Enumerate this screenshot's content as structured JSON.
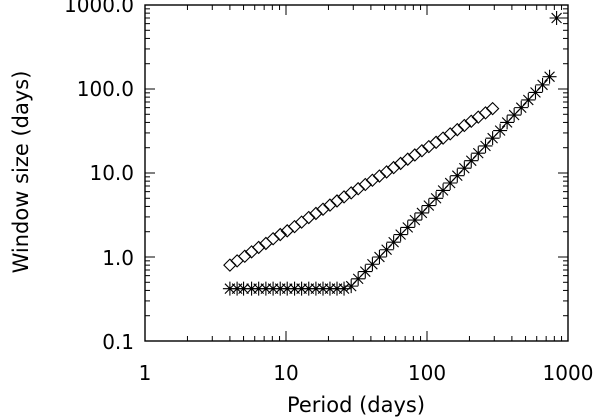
{
  "chart_data": {
    "type": "scatter",
    "title": "",
    "xlabel": "Period (days)",
    "ylabel": "Window size (days)",
    "xscale": "log",
    "yscale": "log",
    "xlim": [
      1,
      1000
    ],
    "ylim": [
      0.1,
      1000
    ],
    "grid": false,
    "x_tick_labels": [
      "1",
      "10",
      "100",
      "1000"
    ],
    "y_tick_labels": [
      "0.1",
      "1.0",
      "10.0",
      "100.0",
      "1000.0"
    ],
    "series": [
      {
        "marker": "diamond",
        "points": [
          [
            4.0,
            0.8
          ],
          [
            4.5,
            0.9
          ],
          [
            5.1,
            1.02
          ],
          [
            5.7,
            1.15
          ],
          [
            6.4,
            1.3
          ],
          [
            7.2,
            1.45
          ],
          [
            8.1,
            1.65
          ],
          [
            9.1,
            1.85
          ],
          [
            10.2,
            2.05
          ],
          [
            11.5,
            2.3
          ],
          [
            12.9,
            2.6
          ],
          [
            14.5,
            2.95
          ],
          [
            16.3,
            3.3
          ],
          [
            18.3,
            3.7
          ],
          [
            20.5,
            4.15
          ],
          [
            23.0,
            4.65
          ],
          [
            25.8,
            5.2
          ],
          [
            29.0,
            5.8
          ],
          [
            32.5,
            6.5
          ],
          [
            36.5,
            7.3
          ],
          [
            41.0,
            8.2
          ],
          [
            46.0,
            9.2
          ],
          [
            51.7,
            10.3
          ],
          [
            58.0,
            11.6
          ],
          [
            65.0,
            13.0
          ],
          [
            73.0,
            14.6
          ],
          [
            82.0,
            16.4
          ],
          [
            92.0,
            18.4
          ],
          [
            103.0,
            20.6
          ],
          [
            116.0,
            23.2
          ],
          [
            130.0,
            26.0
          ],
          [
            146.0,
            29.2
          ],
          [
            164.0,
            32.8
          ],
          [
            184.0,
            36.8
          ],
          [
            206.0,
            41.3
          ],
          [
            231.0,
            46.3
          ],
          [
            260.0,
            52.0
          ],
          [
            292.0,
            58.4
          ]
        ]
      },
      {
        "marker": "asterisk",
        "points": [
          [
            4.0,
            0.42
          ],
          [
            4.5,
            0.42
          ],
          [
            5.0,
            0.42
          ],
          [
            5.7,
            0.42
          ],
          [
            6.4,
            0.42
          ],
          [
            7.2,
            0.42
          ],
          [
            8.1,
            0.42
          ],
          [
            9.1,
            0.42
          ],
          [
            10.2,
            0.42
          ],
          [
            11.5,
            0.42
          ],
          [
            12.9,
            0.42
          ],
          [
            14.5,
            0.42
          ],
          [
            16.3,
            0.42
          ],
          [
            18.3,
            0.42
          ],
          [
            20.5,
            0.42
          ],
          [
            23.0,
            0.42
          ],
          [
            25.8,
            0.42
          ],
          [
            29.0,
            0.45
          ],
          [
            32.5,
            0.55
          ],
          [
            36.5,
            0.67
          ],
          [
            41.0,
            0.82
          ],
          [
            46.0,
            1.0
          ],
          [
            51.7,
            1.22
          ],
          [
            58.0,
            1.5
          ],
          [
            65.0,
            1.85
          ],
          [
            73.0,
            2.25
          ],
          [
            82.0,
            2.75
          ],
          [
            92.0,
            3.35
          ],
          [
            103.0,
            4.1
          ],
          [
            116.0,
            5.0
          ],
          [
            130.0,
            6.2
          ],
          [
            146.0,
            7.6
          ],
          [
            164.0,
            9.3
          ],
          [
            184.0,
            11.4
          ],
          [
            206.0,
            14.0
          ],
          [
            231.0,
            17.2
          ],
          [
            260.0,
            21.0
          ],
          [
            292.0,
            26.0
          ],
          [
            330.0,
            32.0
          ],
          [
            370.0,
            40.0
          ],
          [
            415.0,
            49.0
          ],
          [
            466.0,
            60.0
          ],
          [
            523.0,
            74.0
          ],
          [
            588.0,
            91.0
          ],
          [
            660.0,
            112.0
          ],
          [
            740.0,
            140.0
          ],
          [
            830.0,
            700.0
          ]
        ]
      }
    ]
  }
}
